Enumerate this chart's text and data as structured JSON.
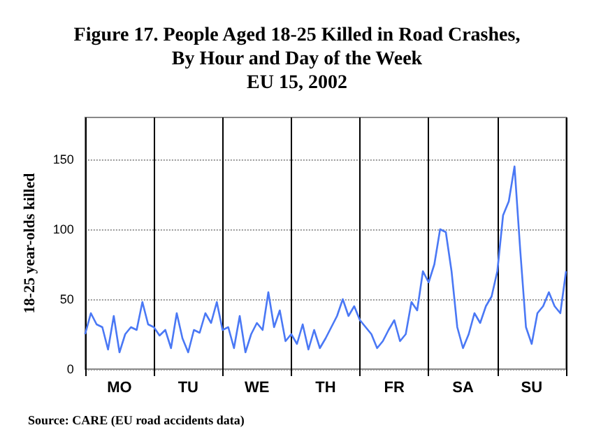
{
  "chart_data": {
    "type": "line",
    "title": "Figure 17. People Aged 18-25 Killed in Road Crashes,\nBy Hour and Day of the Week\nEU 15, 2002",
    "ylabel": "18-25 year-olds killed",
    "annotations": [
      "Source: CARE (EU road accidents data)"
    ],
    "categories": [
      null,
      null,
      null,
      null,
      null,
      null,
      "MO",
      null,
      null,
      null,
      null,
      null,
      null,
      null,
      null,
      null,
      null,
      null,
      "TU",
      null,
      null,
      null,
      null,
      null,
      null,
      null,
      null,
      null,
      null,
      null,
      "WE",
      null,
      null,
      null,
      null,
      null,
      null,
      null,
      null,
      null,
      null,
      null,
      "TH",
      null,
      null,
      null,
      null,
      null,
      null,
      null,
      null,
      null,
      null,
      null,
      "FR",
      null,
      null,
      null,
      null,
      null,
      null,
      null,
      null,
      null,
      null,
      null,
      "SA",
      null,
      null,
      null,
      null,
      null,
      null,
      null,
      null,
      null,
      null,
      null,
      "SU",
      null,
      null,
      null,
      null,
      null,
      null
    ],
    "series": [
      {
        "color": "#4a78f5",
        "values": [
          25,
          40,
          32,
          30,
          14,
          38,
          12,
          25,
          30,
          28,
          48,
          32,
          30,
          24,
          28,
          15,
          40,
          22,
          12,
          28,
          26,
          40,
          33,
          48,
          28,
          30,
          15,
          38,
          12,
          25,
          33,
          28,
          55,
          30,
          42,
          20,
          25,
          18,
          32,
          14,
          28,
          15,
          22,
          30,
          38,
          50,
          38,
          45,
          35,
          30,
          25,
          15,
          20,
          28,
          35,
          20,
          25,
          48,
          42,
          70,
          62,
          75,
          100,
          98,
          70,
          30,
          15,
          25,
          40,
          33,
          45,
          52,
          70,
          110,
          120,
          145,
          85,
          30,
          18,
          40,
          45,
          55,
          45,
          40,
          70
        ]
      }
    ],
    "ylim": [
      0,
      180
    ],
    "yticks": [
      0,
      50,
      100,
      150
    ],
    "grid": true,
    "marker": "none",
    "line_style": "solid"
  }
}
